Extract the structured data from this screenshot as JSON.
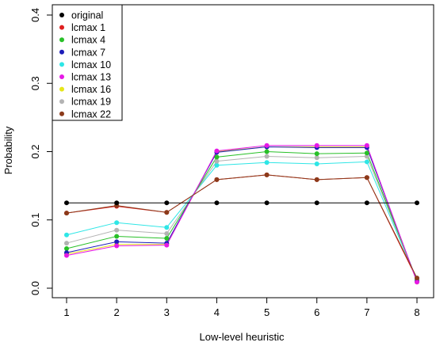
{
  "chart_data": {
    "type": "line",
    "title": "",
    "xlabel": "Low-level heuristic",
    "ylabel": "Probability",
    "x": [
      1,
      2,
      3,
      4,
      5,
      6,
      7,
      8
    ],
    "xlim": [
      1,
      8
    ],
    "ylim": [
      0,
      0.4
    ],
    "yticks": [
      "0.0",
      "0.1",
      "0.2",
      "0.3",
      "0.4"
    ],
    "xticks": [
      "1",
      "2",
      "3",
      "4",
      "5",
      "6",
      "7",
      "8"
    ],
    "grid": false,
    "legend_position": "top-left",
    "series": [
      {
        "name": "original",
        "color": "#000000",
        "values": [
          0.125,
          0.125,
          0.125,
          0.125,
          0.125,
          0.125,
          0.125,
          0.125
        ]
      },
      {
        "name": "lcmax 1",
        "color": "#DF1F1F",
        "values": [
          0.11,
          0.12,
          0.111,
          0.159,
          0.166,
          0.159,
          0.162,
          0.013
        ]
      },
      {
        "name": "lcmax 4",
        "color": "#28C028",
        "values": [
          0.058,
          0.076,
          0.073,
          0.192,
          0.2,
          0.197,
          0.198,
          0.011
        ]
      },
      {
        "name": "lcmax 7",
        "color": "#1C1CB8",
        "values": [
          0.052,
          0.068,
          0.066,
          0.199,
          0.207,
          0.206,
          0.206,
          0.01
        ]
      },
      {
        "name": "lcmax 10",
        "color": "#2EE6E6",
        "values": [
          0.078,
          0.096,
          0.089,
          0.18,
          0.184,
          0.182,
          0.185,
          0.012
        ]
      },
      {
        "name": "lcmax 13",
        "color": "#E619E6",
        "values": [
          0.048,
          0.062,
          0.063,
          0.201,
          0.209,
          0.209,
          0.209,
          0.009
        ]
      },
      {
        "name": "lcmax 16",
        "color": "#E6E619",
        "values": [
          0.05,
          0.064,
          0.064,
          0.2,
          0.207,
          0.207,
          0.207,
          0.009
        ]
      },
      {
        "name": "lcmax 19",
        "color": "#B3B3B3",
        "values": [
          0.066,
          0.085,
          0.08,
          0.186,
          0.193,
          0.191,
          0.193,
          0.012
        ]
      },
      {
        "name": "lcmax 22",
        "color": "#8B3A1A",
        "values": [
          0.11,
          0.121,
          0.111,
          0.159,
          0.166,
          0.159,
          0.162,
          0.015
        ]
      }
    ]
  }
}
